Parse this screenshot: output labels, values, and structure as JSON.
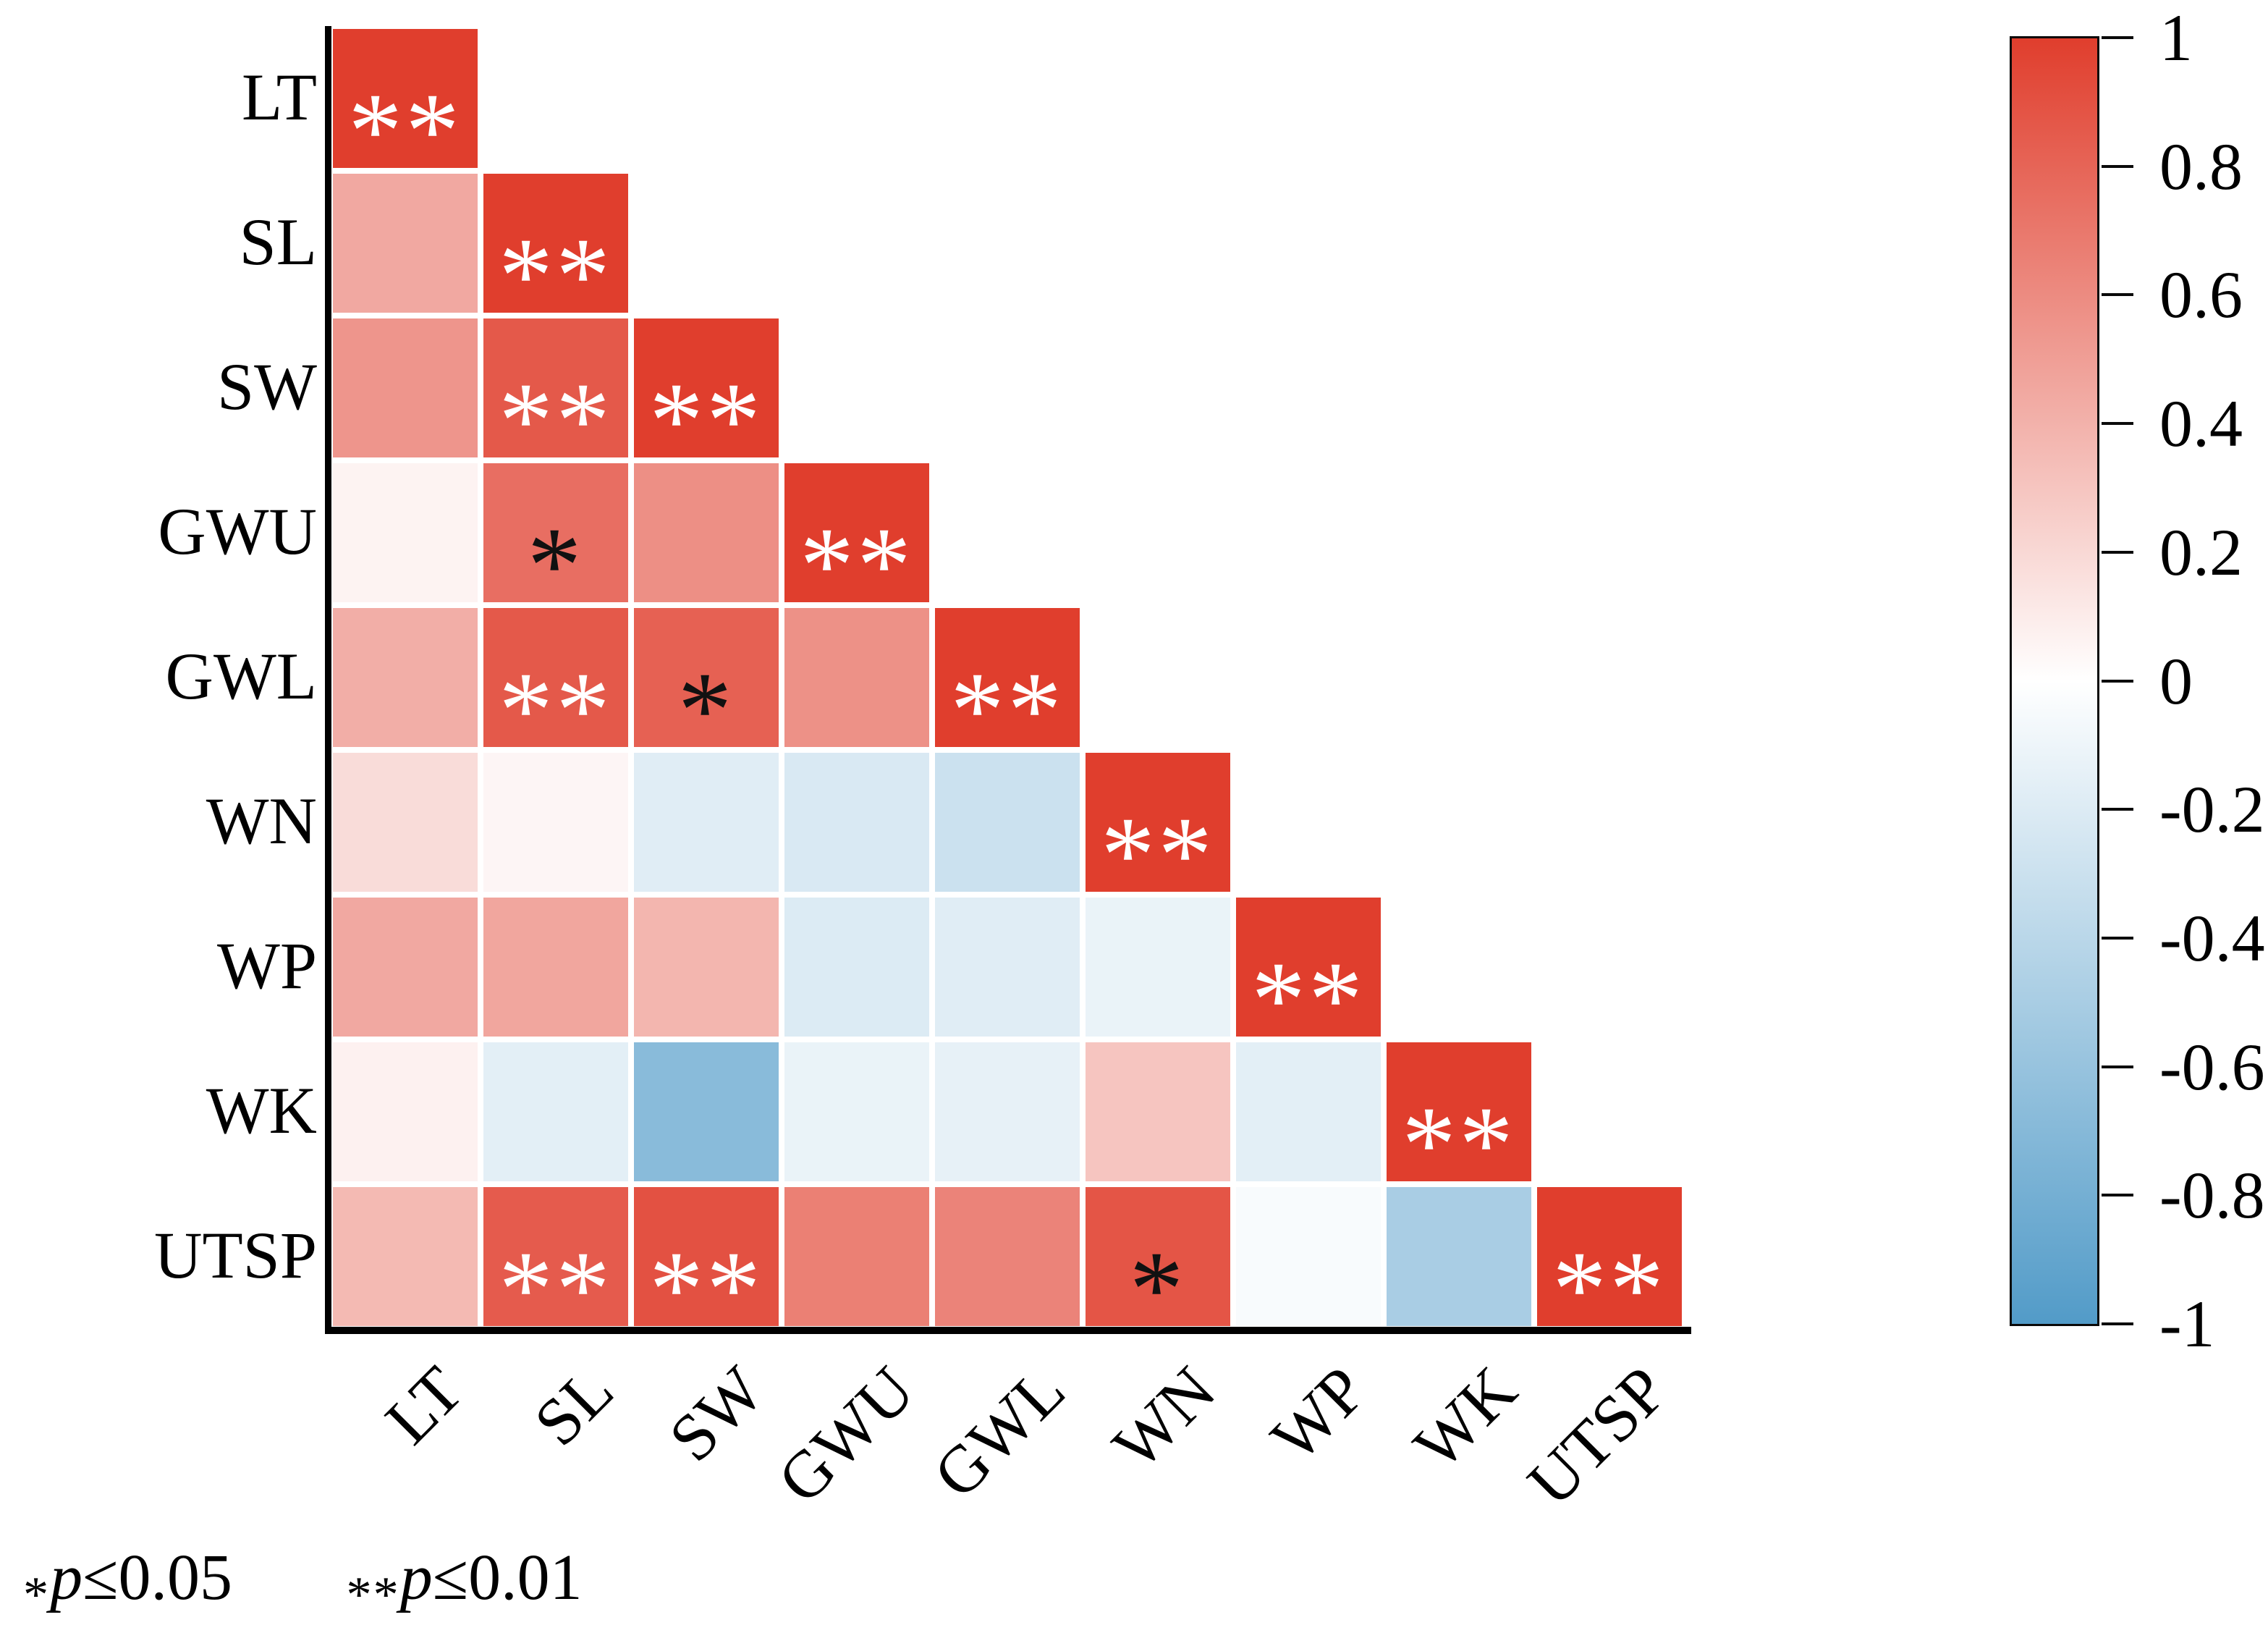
{
  "chart_data": {
    "type": "heatmap",
    "subtype": "correlation-matrix-lower-triangle",
    "title": "",
    "categories": [
      "LT",
      "SL",
      "SW",
      "GWU",
      "GWL",
      "WN",
      "WP",
      "WK",
      "UTSP"
    ],
    "values": [
      [
        1
      ],
      [
        0.45,
        1
      ],
      [
        0.55,
        0.86,
        1
      ],
      [
        0.06,
        0.75,
        0.58,
        1
      ],
      [
        0.42,
        0.86,
        0.82,
        0.57,
        1
      ],
      [
        0.18,
        0.05,
        -0.18,
        -0.22,
        -0.3,
        1
      ],
      [
        0.45,
        0.46,
        0.38,
        -0.2,
        -0.18,
        -0.12,
        1
      ],
      [
        0.07,
        -0.16,
        -0.68,
        -0.12,
        -0.14,
        0.3,
        -0.16,
        1
      ],
      [
        0.36,
        0.85,
        0.9,
        0.66,
        0.64,
        0.88,
        -0.04,
        -0.5,
        1
      ]
    ],
    "significance": [
      [
        "**"
      ],
      [
        "",
        "**"
      ],
      [
        "",
        "**",
        "**"
      ],
      [
        "",
        "*",
        "",
        "**"
      ],
      [
        "",
        "**",
        "*",
        "",
        "**"
      ],
      [
        "",
        "",
        "",
        "",
        "",
        "**"
      ],
      [
        "",
        "",
        "",
        "",
        "",
        "",
        "**"
      ],
      [
        "",
        "",
        "",
        "",
        "",
        "",
        "",
        "**"
      ],
      [
        "",
        "**",
        "**",
        "",
        "",
        "*",
        "",
        "",
        "**"
      ]
    ],
    "sig_marker_colors": {
      "*": "#111111",
      "**": "#ffffff"
    },
    "colorbar": {
      "min": -1,
      "max": 1,
      "ticks": [
        1,
        0.8,
        0.6,
        0.4,
        0.2,
        0,
        -0.2,
        -0.4,
        -0.6,
        -0.8,
        -1
      ],
      "tick_labels": [
        "1",
        "0.8",
        "0.6",
        "0.4",
        "0.2",
        "0",
        "-0.2",
        "-0.4",
        "-0.6",
        "-0.8",
        "-1"
      ],
      "color_positive": "#e03e2d",
      "color_zero": "#ffffff",
      "color_negative": "#529bc8"
    },
    "legend": {
      "items": [
        {
          "marker": "*",
          "p": "p",
          "rest": "≤0.05"
        },
        {
          "marker": "**",
          "p": "p",
          "rest": "≤0.01"
        }
      ]
    }
  }
}
